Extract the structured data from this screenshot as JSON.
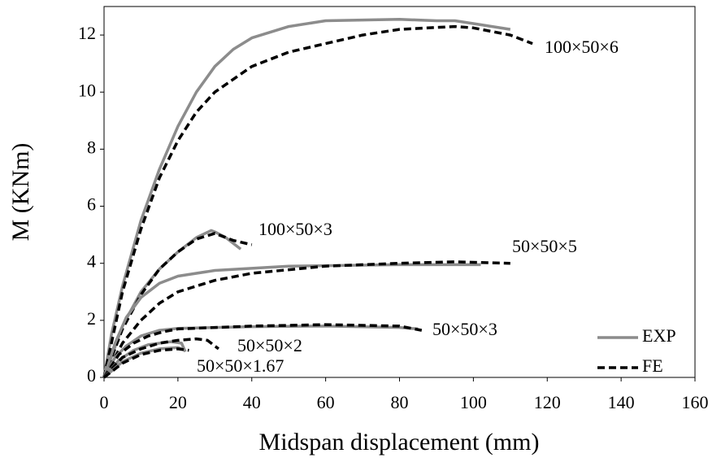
{
  "chart_data": {
    "type": "line",
    "xlabel": "Midspan displacement (mm)",
    "ylabel": "M (KNm)",
    "xlim": [
      0,
      160
    ],
    "xticks": [
      0,
      20,
      40,
      60,
      80,
      100,
      120,
      140,
      160
    ],
    "ylim": [
      0,
      13
    ],
    "yticks": [
      0,
      2,
      4,
      6,
      8,
      10,
      12
    ],
    "legend_position": "lower right",
    "legend": [
      {
        "name": "EXP",
        "color": "#8c8c8c",
        "dashed": false
      },
      {
        "name": "FE",
        "color": "#000000",
        "dashed": true
      }
    ],
    "specimens": [
      {
        "label": "100×50×6",
        "exp": {
          "x": [
            0,
            2,
            5,
            10,
            15,
            20,
            25,
            30,
            35,
            40,
            50,
            60,
            80,
            90,
            95,
            100,
            110
          ],
          "y": [
            0,
            1.5,
            3.2,
            5.5,
            7.3,
            8.8,
            10.0,
            10.9,
            11.5,
            11.9,
            12.3,
            12.5,
            12.55,
            12.5,
            12.5,
            12.4,
            12.2
          ]
        },
        "fe": {
          "x": [
            0,
            5,
            10,
            15,
            20,
            25,
            30,
            40,
            50,
            60,
            70,
            80,
            95,
            100,
            110,
            116
          ],
          "y": [
            0,
            3.0,
            5.2,
            7.0,
            8.3,
            9.3,
            10.0,
            10.9,
            11.4,
            11.7,
            12.0,
            12.2,
            12.3,
            12.25,
            12.0,
            11.7
          ]
        }
      },
      {
        "label": "100×50×3",
        "exp": {
          "x": [
            0,
            5,
            10,
            15,
            20,
            25,
            29,
            30,
            33,
            37
          ],
          "y": [
            0,
            1.8,
            3.0,
            3.8,
            4.4,
            4.9,
            5.15,
            5.1,
            4.9,
            4.5
          ]
        },
        "fe": {
          "x": [
            0,
            5,
            10,
            15,
            20,
            25,
            30,
            35,
            40
          ],
          "y": [
            0,
            1.7,
            2.9,
            3.8,
            4.4,
            4.85,
            5.05,
            4.8,
            4.65
          ]
        }
      },
      {
        "label": "50×50×5",
        "exp": {
          "x": [
            0,
            3,
            6,
            10,
            15,
            20,
            30,
            50,
            80,
            102
          ],
          "y": [
            0,
            1.2,
            2.1,
            2.8,
            3.3,
            3.55,
            3.75,
            3.9,
            3.95,
            3.95
          ]
        },
        "fe": {
          "x": [
            0,
            5,
            10,
            15,
            20,
            30,
            40,
            60,
            80,
            95,
            110
          ],
          "y": [
            0,
            1.2,
            2.0,
            2.6,
            3.0,
            3.4,
            3.65,
            3.9,
            4.0,
            4.05,
            4.0
          ]
        }
      },
      {
        "label": "50×50×3",
        "exp": {
          "x": [
            0,
            3,
            6,
            10,
            15,
            20,
            40,
            60,
            80,
            85
          ],
          "y": [
            0,
            0.7,
            1.1,
            1.45,
            1.65,
            1.72,
            1.78,
            1.8,
            1.75,
            1.7
          ]
        },
        "fe": {
          "x": [
            0,
            4,
            8,
            12,
            16,
            20,
            40,
            60,
            80,
            86
          ],
          "y": [
            0,
            0.8,
            1.2,
            1.45,
            1.6,
            1.7,
            1.8,
            1.85,
            1.8,
            1.65
          ]
        }
      },
      {
        "label": "50×50×2",
        "exp": {
          "x": [
            0,
            4,
            8,
            12,
            18,
            21,
            22
          ],
          "y": [
            0,
            0.6,
            0.95,
            1.15,
            1.25,
            1.2,
            0.9
          ]
        },
        "fe": {
          "x": [
            0,
            5,
            10,
            15,
            20,
            25,
            28,
            31
          ],
          "y": [
            0,
            0.7,
            1.0,
            1.2,
            1.3,
            1.35,
            1.3,
            1.0
          ]
        }
      },
      {
        "label": "50×50×1.67",
        "exp": {
          "x": [
            0,
            5,
            10,
            15,
            20,
            22
          ],
          "y": [
            0,
            0.55,
            0.85,
            1.0,
            1.05,
            0.95
          ]
        },
        "fe": {
          "x": [
            0,
            5,
            10,
            15,
            20,
            23
          ],
          "y": [
            0,
            0.5,
            0.8,
            0.95,
            1.0,
            0.95
          ]
        }
      }
    ]
  }
}
